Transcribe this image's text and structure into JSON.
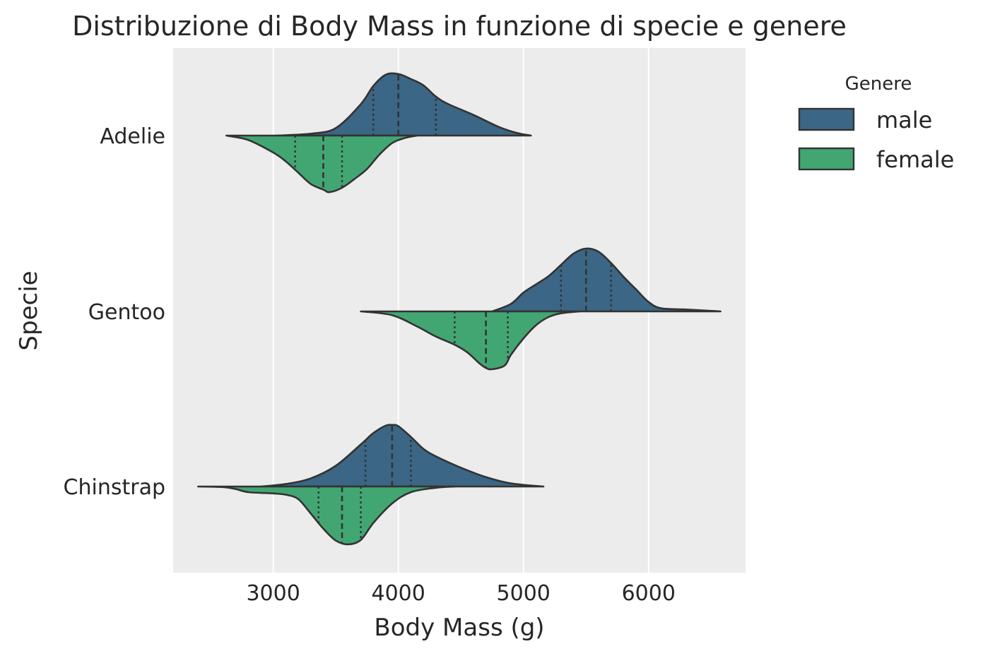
{
  "chart_data": {
    "type": "violin",
    "orientation": "horizontal",
    "split": true,
    "title": "Distribuzione di Body Mass in funzione di specie e genere",
    "xlabel": "Body Mass (g)",
    "ylabel": "Specie",
    "xlim": [
      2200,
      6775
    ],
    "xticks": [
      3000,
      4000,
      5000,
      6000
    ],
    "categories": [
      "Adelie",
      "Gentoo",
      "Chinstrap"
    ],
    "grid": "vertical",
    "background": "#ececec",
    "legend": {
      "title": "Genere",
      "placement": "upper-right-outside"
    },
    "series": [
      {
        "name": "male",
        "color": "#3b6685",
        "side": "upper",
        "groups": [
          {
            "category": "Adelie",
            "range": [
              3025,
              5060
            ],
            "quartiles": [
              3800,
              4000,
              4300
            ],
            "profile": [
              [
                3025,
                0.0
              ],
              [
                3300,
                0.03
              ],
              [
                3500,
                0.12
              ],
              [
                3700,
                0.5
              ],
              [
                3800,
                0.79
              ],
              [
                3900,
                0.97
              ],
              [
                4000,
                0.98
              ],
              [
                4100,
                0.9
              ],
              [
                4200,
                0.8
              ],
              [
                4300,
                0.62
              ],
              [
                4400,
                0.5
              ],
              [
                4600,
                0.33
              ],
              [
                4800,
                0.14
              ],
              [
                4950,
                0.04
              ],
              [
                5060,
                0.0
              ]
            ]
          },
          {
            "category": "Gentoo",
            "range": [
              4750,
              6575
            ],
            "quartiles": [
              5300,
              5500,
              5700
            ],
            "profile": [
              [
                4750,
                0.0
              ],
              [
                4900,
                0.12
              ],
              [
                5000,
                0.3
              ],
              [
                5100,
                0.43
              ],
              [
                5200,
                0.56
              ],
              [
                5300,
                0.74
              ],
              [
                5400,
                0.92
              ],
              [
                5500,
                1.0
              ],
              [
                5600,
                0.95
              ],
              [
                5700,
                0.77
              ],
              [
                5800,
                0.55
              ],
              [
                5900,
                0.35
              ],
              [
                6000,
                0.15
              ],
              [
                6100,
                0.05
              ],
              [
                6300,
                0.03
              ],
              [
                6575,
                0.0
              ]
            ]
          },
          {
            "category": "Chinstrap",
            "range": [
              2900,
              5160
            ],
            "quartiles": [
              3737,
              3950,
              4100
            ],
            "profile": [
              [
                2900,
                0.0
              ],
              [
                3100,
                0.04
              ],
              [
                3300,
                0.13
              ],
              [
                3500,
                0.33
              ],
              [
                3700,
                0.67
              ],
              [
                3800,
                0.85
              ],
              [
                3900,
                0.97
              ],
              [
                3950,
                0.98
              ],
              [
                4000,
                0.96
              ],
              [
                4100,
                0.79
              ],
              [
                4200,
                0.6
              ],
              [
                4300,
                0.48
              ],
              [
                4500,
                0.3
              ],
              [
                4700,
                0.15
              ],
              [
                4900,
                0.05
              ],
              [
                5160,
                0.0
              ]
            ]
          }
        ]
      },
      {
        "name": "female",
        "color": "#42a673",
        "side": "lower",
        "groups": [
          {
            "category": "Adelie",
            "range": [
              2625,
              4150
            ],
            "quartiles": [
              3175,
              3400,
              3550
            ],
            "profile": [
              [
                2625,
                0.0
              ],
              [
                2800,
                0.07
              ],
              [
                3000,
                0.27
              ],
              [
                3100,
                0.41
              ],
              [
                3200,
                0.59
              ],
              [
                3300,
                0.77
              ],
              [
                3400,
                0.86
              ],
              [
                3450,
                0.9
              ],
              [
                3550,
                0.83
              ],
              [
                3650,
                0.69
              ],
              [
                3750,
                0.53
              ],
              [
                3850,
                0.3
              ],
              [
                3950,
                0.12
              ],
              [
                4050,
                0.04
              ],
              [
                4150,
                0.0
              ]
            ]
          },
          {
            "category": "Gentoo",
            "range": [
              3700,
              5450
            ],
            "quartiles": [
              4450,
              4700,
              4875
            ],
            "profile": [
              [
                3700,
                0.0
              ],
              [
                3950,
                0.06
              ],
              [
                4150,
                0.24
              ],
              [
                4300,
                0.4
              ],
              [
                4450,
                0.53
              ],
              [
                4550,
                0.65
              ],
              [
                4650,
                0.83
              ],
              [
                4700,
                0.9
              ],
              [
                4750,
                0.92
              ],
              [
                4850,
                0.86
              ],
              [
                4900,
                0.69
              ],
              [
                5000,
                0.43
              ],
              [
                5100,
                0.22
              ],
              [
                5200,
                0.09
              ],
              [
                5300,
                0.03
              ],
              [
                5450,
                0.0
              ]
            ]
          },
          {
            "category": "Chinstrap",
            "range": [
              2400,
              4450
            ],
            "quartiles": [
              3362,
              3550,
              3700
            ],
            "profile": [
              [
                2400,
                0.0
              ],
              [
                2600,
                0.01
              ],
              [
                2700,
                0.04
              ],
              [
                2800,
                0.09
              ],
              [
                3000,
                0.11
              ],
              [
                3100,
                0.13
              ],
              [
                3200,
                0.2
              ],
              [
                3300,
                0.43
              ],
              [
                3400,
                0.67
              ],
              [
                3500,
                0.86
              ],
              [
                3600,
                0.92
              ],
              [
                3700,
                0.85
              ],
              [
                3800,
                0.58
              ],
              [
                3950,
                0.27
              ],
              [
                4100,
                0.09
              ],
              [
                4300,
                0.02
              ],
              [
                4450,
                0.0
              ]
            ]
          }
        ]
      }
    ]
  }
}
